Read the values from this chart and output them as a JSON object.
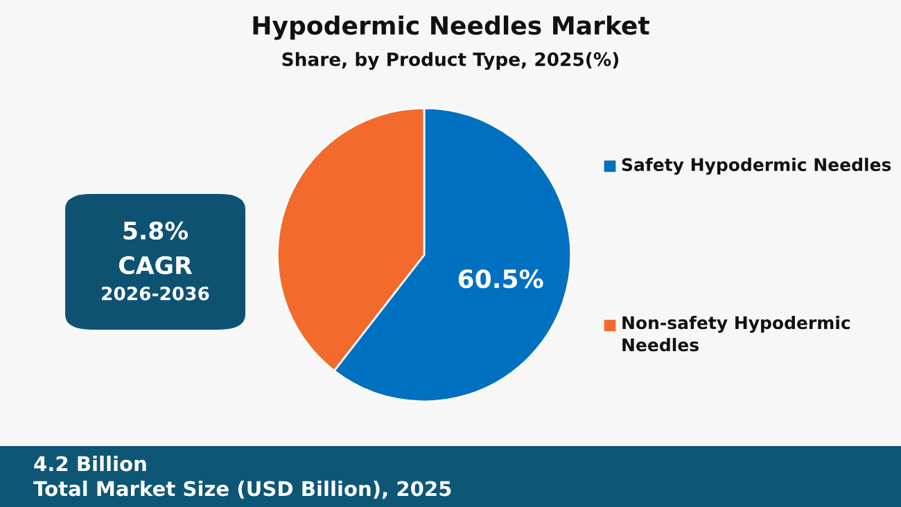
{
  "chart_data": {
    "type": "pie",
    "title": "Hypodermic Needles Market",
    "subtitle": "Share, by Product Type, 2025(%)",
    "categories": [
      "Safety Hypodermic Needles",
      "Non-safety Hypodermic Needles"
    ],
    "values": [
      60.5,
      39.5
    ],
    "colors": [
      "#0070c0",
      "#f26b2d"
    ],
    "value_labels": [
      "60.5%",
      null
    ],
    "legend": "right",
    "annotations": [
      "5.8%",
      "CAGR",
      "2026-2036",
      "4.2 Billion",
      "Total Market Size (USD Billion), 2025"
    ]
  }
}
